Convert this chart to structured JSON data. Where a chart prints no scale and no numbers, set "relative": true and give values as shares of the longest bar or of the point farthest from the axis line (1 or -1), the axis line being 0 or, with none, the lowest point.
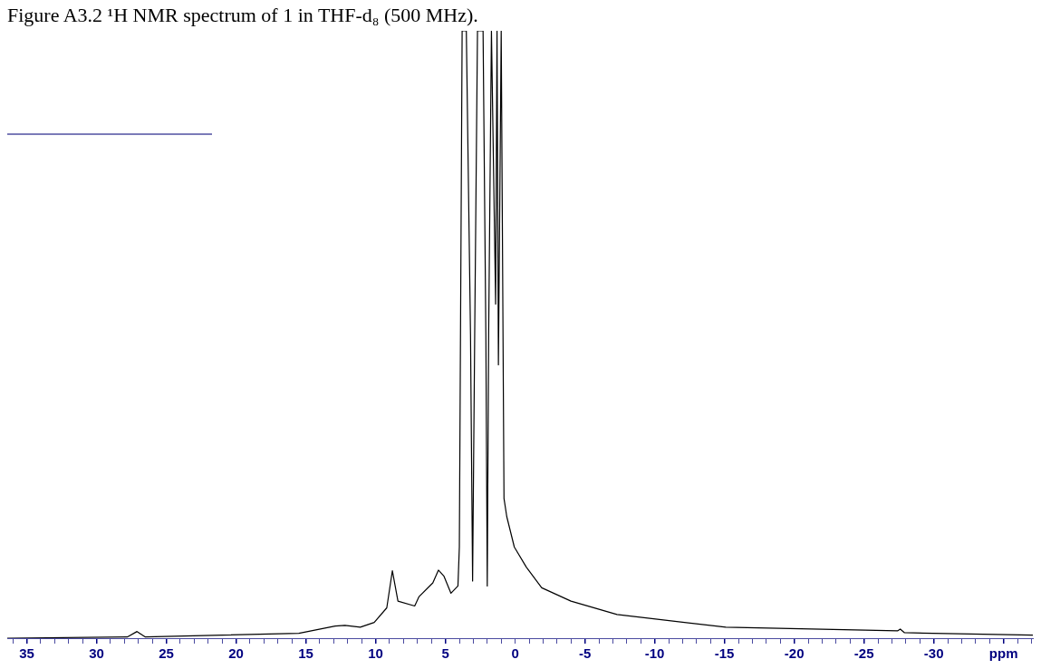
{
  "chart_data": {
    "type": "line",
    "title": "Figure A3.2 ¹H NMR spectrum of 1 in THF-d₈ (500 MHz).",
    "relative": true,
    "color": "#000000",
    "marker": "none",
    "grid": false,
    "legend": false,
    "tick_labels": "x",
    "x": [
      36.4,
      27.8,
      27.1,
      26.5,
      15.5,
      12.9,
      12.2,
      11.1,
      10.1,
      9.2,
      8.8,
      8.4,
      7.2,
      6.9,
      5.9,
      5.5,
      5.1,
      4.6,
      4.1,
      4.0,
      3.8,
      3.5,
      3.2,
      3.05,
      2.9,
      2.7,
      2.3,
      2.1,
      2.0,
      1.9,
      1.7,
      1.4,
      1.3,
      1.2,
      1.0,
      0.8,
      0.6,
      0.06,
      -0.8,
      -1.9,
      -4.0,
      -7.3,
      -15.1,
      -27.4,
      -27.6,
      -27.9,
      -37.1
    ],
    "values": [
      0,
      0.002,
      0.011,
      0.002,
      0.008,
      0.02,
      0.021,
      0.018,
      0.026,
      0.05,
      0.111,
      0.061,
      0.053,
      0.068,
      0.091,
      0.112,
      0.102,
      0.074,
      0.086,
      0.15,
      1,
      1,
      0.5,
      0.094,
      0.5,
      1,
      1,
      0.5,
      0.086,
      0.5,
      1,
      0.55,
      1,
      0.45,
      1,
      0.23,
      0.2,
      0.15,
      0.117,
      0.083,
      0.061,
      0.039,
      0.018,
      0.012,
      0.015,
      0.009,
      0.005
    ],
    "xlim": [
      36.4,
      -37.1
    ],
    "xticks": [
      {
        "value": 36,
        "label": null
      },
      35,
      {
        "value": 34,
        "label": null
      },
      {
        "value": 33,
        "label": null
      },
      {
        "value": 32,
        "label": null
      },
      {
        "value": 31,
        "label": null
      },
      30,
      {
        "value": 29,
        "label": null
      },
      {
        "value": 28,
        "label": null
      },
      {
        "value": 27,
        "label": null
      },
      {
        "value": 26,
        "label": null
      },
      25,
      {
        "value": 24,
        "label": null
      },
      {
        "value": 23,
        "label": null
      },
      {
        "value": 22,
        "label": null
      },
      {
        "value": 21,
        "label": null
      },
      20,
      {
        "value": 19,
        "label": null
      },
      {
        "value": 18,
        "label": null
      },
      {
        "value": 17,
        "label": null
      },
      {
        "value": 16,
        "label": null
      },
      15,
      {
        "value": 14,
        "label": null
      },
      {
        "value": 13,
        "label": null
      },
      {
        "value": 12,
        "label": null
      },
      {
        "value": 11,
        "label": null
      },
      10,
      {
        "value": 9,
        "label": null
      },
      {
        "value": 8,
        "label": null
      },
      {
        "value": 7,
        "label": null
      },
      {
        "value": 6,
        "label": null
      },
      5,
      {
        "value": 4,
        "label": null
      },
      {
        "value": 3,
        "label": null
      },
      {
        "value": 2,
        "label": null
      },
      {
        "value": 1,
        "label": null
      },
      0,
      {
        "value": -1,
        "label": null
      },
      {
        "value": -2,
        "label": null
      },
      {
        "value": -3,
        "label": null
      },
      {
        "value": -4,
        "label": null
      },
      -5,
      {
        "value": -6,
        "label": null
      },
      {
        "value": -7,
        "label": null
      },
      {
        "value": -8,
        "label": null
      },
      {
        "value": -9,
        "label": null
      },
      -10,
      {
        "value": -11,
        "label": null
      },
      {
        "value": -12,
        "label": null
      },
      {
        "value": -13,
        "label": null
      },
      {
        "value": -14,
        "label": null
      },
      -15,
      {
        "value": -16,
        "label": null
      },
      {
        "value": -17,
        "label": null
      },
      {
        "value": -18,
        "label": null
      },
      {
        "value": -19,
        "label": null
      },
      -20,
      {
        "value": -21,
        "label": null
      },
      {
        "value": -22,
        "label": null
      },
      {
        "value": -23,
        "label": null
      },
      {
        "value": -24,
        "label": null
      },
      -25,
      {
        "value": -26,
        "label": null
      },
      {
        "value": -27,
        "label": null
      },
      {
        "value": -28,
        "label": null
      },
      {
        "value": -29,
        "label": null
      },
      -30,
      {
        "value": -31,
        "label": null
      },
      {
        "value": -32,
        "label": null
      },
      {
        "value": -33,
        "label": null
      },
      {
        "value": -34,
        "label": null
      },
      {
        "value": -35,
        "label": "ppm"
      },
      {
        "value": -36,
        "label": null
      },
      {
        "value": -37,
        "label": null
      }
    ]
  }
}
